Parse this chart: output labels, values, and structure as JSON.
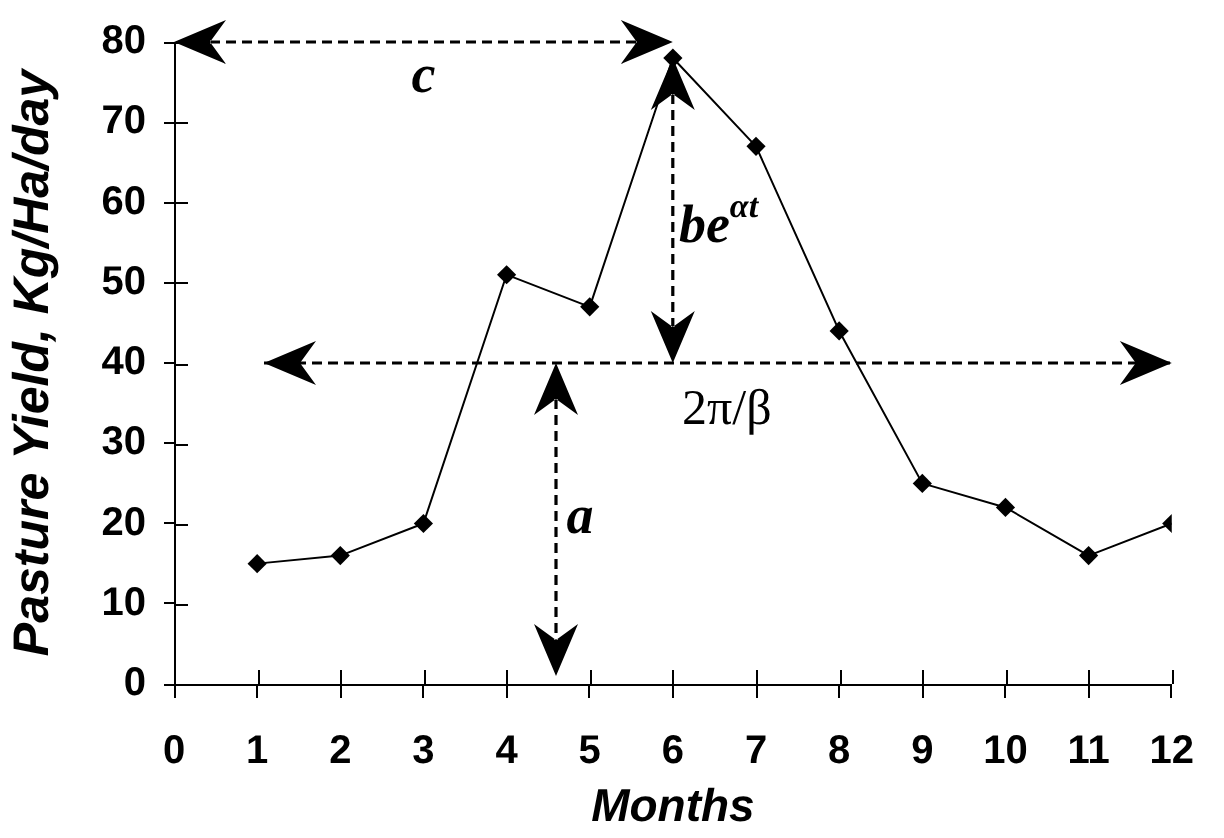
{
  "chart_data": {
    "type": "line",
    "xlabel": "Months",
    "ylabel": "Pasture Yield, Kg/Ha/day",
    "x": [
      1,
      2,
      3,
      4,
      5,
      6,
      7,
      8,
      9,
      10,
      11,
      12
    ],
    "values": [
      15,
      16,
      20,
      51,
      47,
      78,
      67,
      44,
      25,
      22,
      16,
      20
    ],
    "color": "#000000",
    "marker": "diamond",
    "xlim": [
      0,
      12
    ],
    "xticks": [
      0,
      1,
      2,
      3,
      4,
      5,
      6,
      7,
      8,
      9,
      10,
      11,
      12
    ],
    "ylim": [
      0,
      80
    ],
    "yticks": [
      0,
      10,
      20,
      30,
      40,
      50,
      60,
      70,
      80
    ],
    "ref_lines": [
      {
        "axis": "y",
        "value": 40,
        "line_style": "dashed"
      }
    ],
    "annotations": [
      "c",
      "be$^{αt}$",
      "2π/β",
      "a"
    ]
  }
}
